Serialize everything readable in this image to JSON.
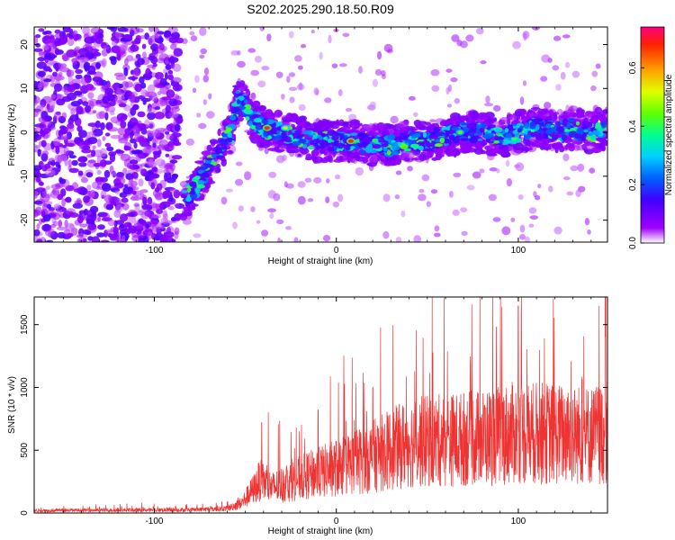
{
  "title": "S202.2025.290.18.50.R09",
  "chart_data": [
    {
      "type": "heatmap",
      "xlabel": "Height of straight line (km)",
      "ylabel": "Frequency (Hz)",
      "xlim": [
        -166,
        149
      ],
      "ylim": [
        -25,
        24
      ],
      "xticks": [
        -100,
        0,
        100
      ],
      "yticks": [
        -20,
        -10,
        0,
        10,
        20
      ],
      "colorbar": {
        "label": "Normalized spectral amplitude",
        "range": [
          0.0,
          0.74
        ],
        "ticks": [
          0.0,
          0.2,
          0.4,
          0.6
        ],
        "tick_labels": [
          "0.0",
          "0.2",
          "0.4",
          "0.6"
        ]
      },
      "ridge": {
        "x": [
          -84,
          -78,
          -70,
          -64,
          -58,
          -54,
          -50,
          -46,
          -40,
          -30,
          -20,
          -10,
          0,
          10,
          20,
          30,
          40,
          50,
          60,
          70,
          80,
          90,
          100,
          110,
          120,
          130,
          140,
          149
        ],
        "y": [
          -15,
          -13,
          -8,
          -4,
          0,
          8,
          6,
          3,
          1,
          0,
          -1,
          -2,
          -2,
          -2,
          -3,
          -3,
          -2,
          -2,
          -1,
          0,
          0,
          -1,
          0,
          1,
          0,
          1,
          0,
          1
        ]
      },
      "hotspots": [
        {
          "x": -38,
          "y": 1,
          "amp": 0.72
        },
        {
          "x": 8,
          "y": -2,
          "amp": 0.7
        },
        {
          "x": -28,
          "y": 1,
          "amp": 0.5
        },
        {
          "x": 68,
          "y": 0,
          "amp": 0.45
        }
      ]
    },
    {
      "type": "line",
      "xlabel": "Height of straight line (km)",
      "ylabel": "SNR (10 * v/v)",
      "xlim": [
        -166,
        149
      ],
      "ylim": [
        0,
        1720
      ],
      "xticks": [
        -100,
        0,
        100
      ],
      "yticks": [
        0,
        500,
        1000,
        1500
      ],
      "series": [
        {
          "name": "SNR",
          "color": "#ee3333",
          "envelope_x": [
            -166,
            -80,
            -60,
            -52,
            -45,
            -42,
            -35,
            -20,
            0,
            20,
            40,
            60,
            80,
            100,
            120,
            140,
            149
          ],
          "envelope_mean": [
            20,
            25,
            35,
            80,
            200,
            260,
            200,
            280,
            360,
            450,
            560,
            580,
            600,
            640,
            630,
            620,
            640
          ],
          "peaks": [
            {
              "x": -41,
              "y": 720
            },
            {
              "x": -10,
              "y": 820
            },
            {
              "x": 20,
              "y": 1000
            },
            {
              "x": 88,
              "y": 1480
            },
            {
              "x": 100,
              "y": 1650
            },
            {
              "x": 148,
              "y": 1720
            }
          ]
        }
      ]
    }
  ]
}
